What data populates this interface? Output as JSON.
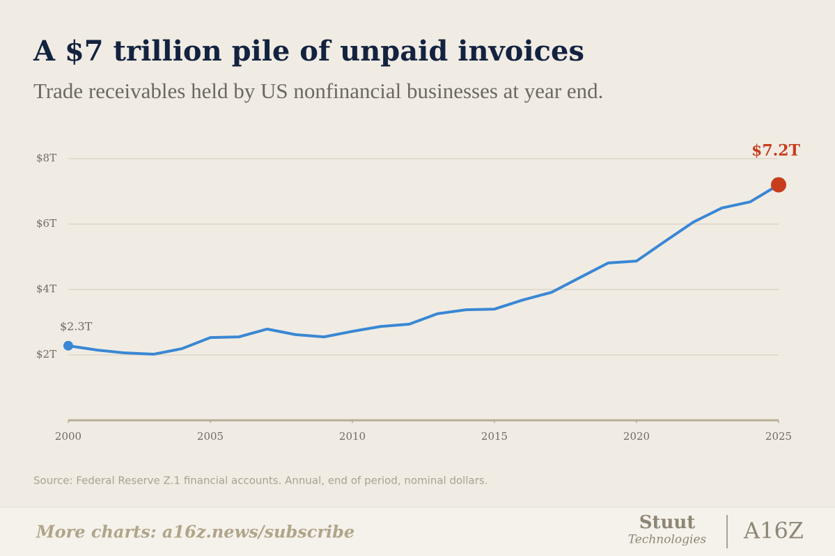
{
  "chart_data": {
    "type": "line",
    "title": "A $7 trillion pile of unpaid invoices",
    "subtitle": "Trade receivables held by US nonfinancial businesses at year end.",
    "source": "Source: Federal Reserve Z.1 financial accounts. Annual, end of period, nominal dollars.",
    "x": [
      2000,
      2001,
      2002,
      2003,
      2004,
      2005,
      2006,
      2007,
      2008,
      2009,
      2010,
      2011,
      2012,
      2013,
      2014,
      2015,
      2016,
      2017,
      2018,
      2019,
      2020,
      2021,
      2022,
      2023,
      2024,
      2025
    ],
    "series": [
      {
        "name": "Trade receivables",
        "color": "#3a87d4",
        "end_color": "#c83d1c",
        "values": [
          2.28,
          2.15,
          2.06,
          2.02,
          2.19,
          2.53,
          2.55,
          2.79,
          2.62,
          2.55,
          2.72,
          2.87,
          2.94,
          3.26,
          3.38,
          3.4,
          3.68,
          3.91,
          4.36,
          4.81,
          4.87,
          5.47,
          6.06,
          6.49,
          6.68,
          7.2
        ],
        "value_labels": [
          "$2.3T",
          null,
          null,
          null,
          null,
          null,
          null,
          null,
          null,
          null,
          null,
          null,
          null,
          null,
          null,
          null,
          null,
          null,
          null,
          null,
          null,
          null,
          null,
          null,
          null,
          "$7.2T"
        ]
      }
    ],
    "xlim": [
      2000,
      2025
    ],
    "xticks": [
      2000,
      2005,
      2010,
      2015,
      2020,
      2025
    ],
    "ylim": [
      0,
      8
    ],
    "yticks": [
      {
        "value": 2,
        "label": "$2T"
      },
      {
        "value": 4,
        "label": "$4T"
      },
      {
        "value": 6,
        "label": "$6T"
      },
      {
        "value": 8,
        "label": "$8T"
      }
    ],
    "grid": true
  },
  "footer": {
    "link": "More charts: a16z.news/subscribe",
    "logo_top": "Stuut",
    "logo_bottom": "Technologies",
    "logo_right": "A16Z"
  }
}
